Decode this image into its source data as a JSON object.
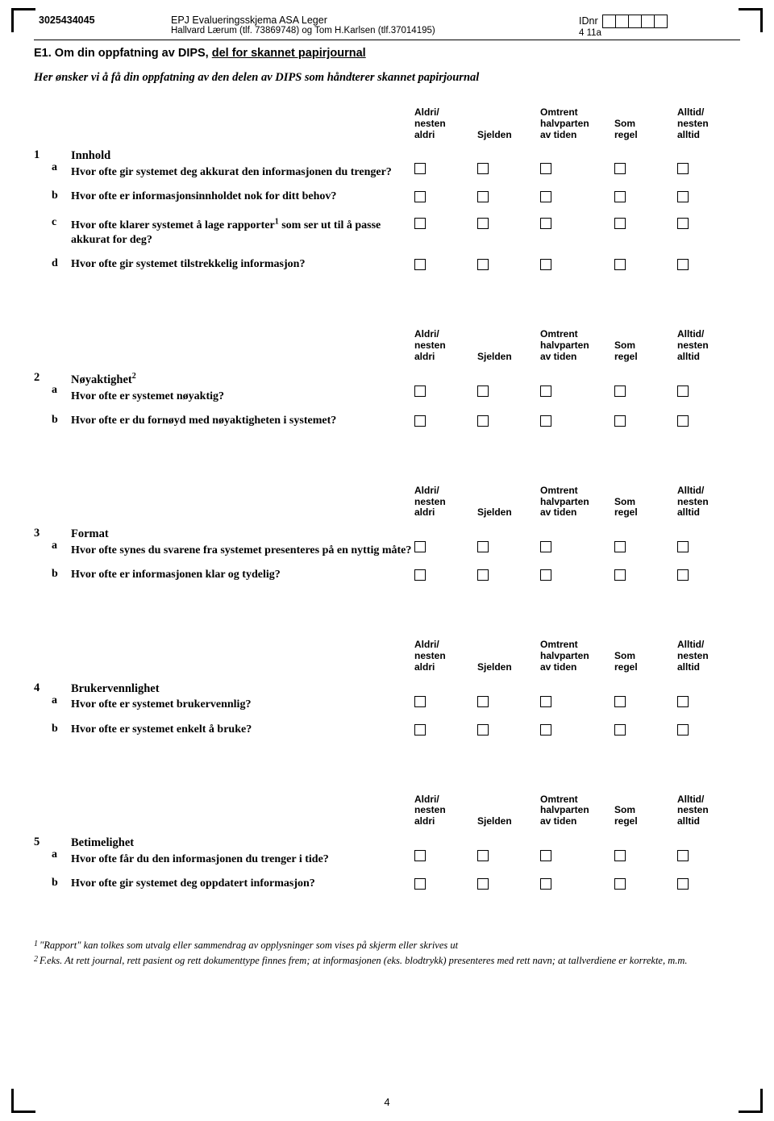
{
  "header": {
    "code": "3025434045",
    "title_line1": "EPJ Evalueringsskjema ASA Leger",
    "title_line2": "Hallvard Lærum (tlf. 73869748) og Tom H.Karlsen (tlf.37014195)",
    "idnr_label": "IDnr",
    "id_sub": "4 11a"
  },
  "e1": {
    "prefix": "E1. Om din oppfatning av DIPS, ",
    "underline": "del for skannet papirjournal"
  },
  "intro": {
    "text_before": "Her ønsker vi å få din oppfatning av den delen av DIPS som håndterer ",
    "skannet": "skannet",
    "text_after": " papirjournal"
  },
  "scale": {
    "c1": "Aldri/\nnesten\naldri",
    "c2": "Sjelden",
    "c3": "Omtrent\nhalvparten\nav tiden",
    "c4": "Som\nregel",
    "c5": "Alltid/\nnesten\nalltid"
  },
  "sections": [
    {
      "num": "1",
      "title": "Innhold",
      "items": [
        {
          "l": "a",
          "q": "Hvor ofte gir systemet deg akkurat den informasjonen du trenger?"
        },
        {
          "l": "b",
          "q": "Hvor ofte er informasjonsinnholdet nok for ditt behov?"
        },
        {
          "l": "c",
          "q": "Hvor ofte klarer systemet å lage rapporter¹ som ser ut til å passe akkurat for deg?"
        },
        {
          "l": "d",
          "q": "Hvor ofte gir systemet tilstrekkelig informasjon?"
        }
      ]
    },
    {
      "num": "2",
      "title": "Nøyaktighet²",
      "items": [
        {
          "l": "a",
          "q": "Hvor ofte er systemet nøyaktig?"
        },
        {
          "l": "b",
          "q": "Hvor ofte er du fornøyd med nøyaktigheten i systemet?"
        }
      ]
    },
    {
      "num": "3",
      "title": "Format",
      "items": [
        {
          "l": "a",
          "q": "Hvor ofte synes du svarene fra systemet presenteres på en nyttig måte?"
        },
        {
          "l": "b",
          "q": "Hvor ofte er informasjonen klar og tydelig?"
        }
      ]
    },
    {
      "num": "4",
      "title": "Brukervennlighet",
      "items": [
        {
          "l": "a",
          "q": "Hvor ofte er systemet brukervennlig?"
        },
        {
          "l": "b",
          "q": "Hvor ofte er systemet enkelt å bruke?"
        }
      ]
    },
    {
      "num": "5",
      "title": "Betimelighet",
      "items": [
        {
          "l": "a",
          "q": "Hvor ofte får du den informasjonen du trenger i tide?"
        },
        {
          "l": "b",
          "q": "Hvor ofte gir systemet deg oppdatert informasjon?"
        }
      ]
    }
  ],
  "footnotes": {
    "f1": "\"Rapport\" kan tolkes som utvalg eller sammendrag av opplysninger som vises på skjerm eller skrives ut",
    "f2": "F.eks. At rett journal, rett pasient og rett dokumenttype finnes frem; at informasjonen (eks. blodtrykk) presenteres med rett navn;  at tallverdiene er korrekte, m.m."
  },
  "page_number": "4"
}
